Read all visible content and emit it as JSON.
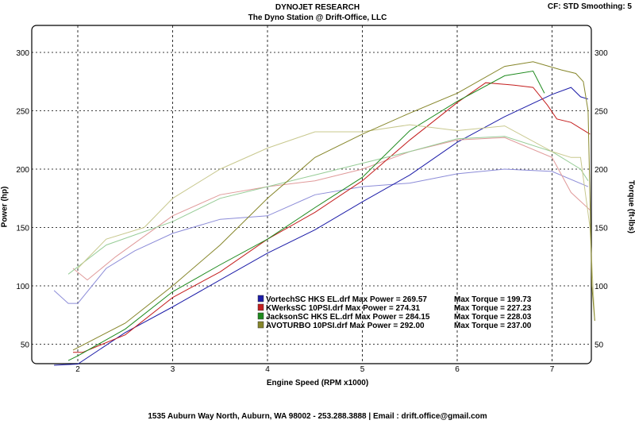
{
  "header": {
    "title": "DYNOJET RESEARCH",
    "subtitle": "The Dyno Station @ Drift-Office, LLC",
    "settings": "CF: STD  Smoothing: 5"
  },
  "footer": "1535 Auburn Way North, Auburn, WA 98002 - 253.288.3888 | Email : drift.office@gmail.com",
  "chart_data": {
    "type": "line",
    "title": "DYNOJET RESEARCH",
    "xlabel": "Engine Speed (RPM x1000)",
    "ylabel": "Power (hp)",
    "y2label": "Torque (ft-lbs)",
    "xlim": [
      1.6,
      7.55
    ],
    "ylim": [
      0,
      325
    ],
    "xticks": [
      "2",
      "3",
      "4",
      "5",
      "6",
      "7"
    ],
    "yticks": [
      "50",
      "100",
      "150",
      "200",
      "250",
      "300"
    ],
    "grid": true,
    "legend_placement": "center",
    "series": [
      {
        "name": "VortechSC HKS EL.drf",
        "max_power_label": "Max Power = 269.57",
        "max_torque_label": "Max Torque = 199.73",
        "color": "#1c1ca8",
        "torque_color": "#8c8cd8",
        "power": [
          [
            1.75,
            32
          ],
          [
            2.0,
            33
          ],
          [
            2.5,
            60
          ],
          [
            3.0,
            82
          ],
          [
            3.5,
            105
          ],
          [
            4.0,
            128
          ],
          [
            4.5,
            148
          ],
          [
            5.0,
            172
          ],
          [
            5.5,
            195
          ],
          [
            6.0,
            223
          ],
          [
            6.5,
            245
          ],
          [
            7.0,
            264
          ],
          [
            7.2,
            270
          ],
          [
            7.3,
            262
          ],
          [
            7.38,
            260
          ]
        ],
        "torque": [
          [
            1.75,
            96
          ],
          [
            1.9,
            85
          ],
          [
            2.0,
            85
          ],
          [
            2.3,
            115
          ],
          [
            2.6,
            130
          ],
          [
            3.0,
            145
          ],
          [
            3.5,
            157
          ],
          [
            4.0,
            160
          ],
          [
            4.5,
            178
          ],
          [
            5.0,
            185
          ],
          [
            5.5,
            188
          ],
          [
            6.0,
            196
          ],
          [
            6.5,
            200
          ],
          [
            7.0,
            198
          ],
          [
            7.38,
            185
          ]
        ]
      },
      {
        "name": "KWerksSC 10PSI.drf",
        "max_power_label": "Max Power = 274.31",
        "max_torque_label": "Max Torque = 227.23",
        "color": "#c41e1e",
        "torque_color": "#e09a9a",
        "power": [
          [
            1.95,
            43
          ],
          [
            2.05,
            43
          ],
          [
            2.5,
            58
          ],
          [
            3.0,
            90
          ],
          [
            3.5,
            112
          ],
          [
            4.0,
            140
          ],
          [
            4.5,
            163
          ],
          [
            5.0,
            190
          ],
          [
            5.5,
            225
          ],
          [
            6.0,
            257
          ],
          [
            6.3,
            274
          ],
          [
            6.6,
            272
          ],
          [
            6.8,
            270
          ],
          [
            6.95,
            255
          ],
          [
            7.05,
            243
          ],
          [
            7.2,
            240
          ],
          [
            7.4,
            230
          ]
        ],
        "torque": [
          [
            1.95,
            115
          ],
          [
            2.1,
            105
          ],
          [
            2.4,
            125
          ],
          [
            3.0,
            160
          ],
          [
            3.5,
            178
          ],
          [
            4.0,
            185
          ],
          [
            4.5,
            190
          ],
          [
            5.0,
            200
          ],
          [
            5.5,
            215
          ],
          [
            6.0,
            225
          ],
          [
            6.5,
            227
          ],
          [
            7.0,
            210
          ],
          [
            7.2,
            180
          ],
          [
            7.4,
            165
          ]
        ]
      },
      {
        "name": "JacksonSC HKS EL.drf",
        "max_power_label": "Max Power = 284.15",
        "max_torque_label": "Max Torque = 228.03",
        "color": "#1e8a1e",
        "torque_color": "#96cc96",
        "power": [
          [
            1.9,
            36
          ],
          [
            2.0,
            40
          ],
          [
            2.5,
            63
          ],
          [
            3.0,
            95
          ],
          [
            3.5,
            118
          ],
          [
            4.0,
            140
          ],
          [
            4.5,
            167
          ],
          [
            5.0,
            193
          ],
          [
            5.5,
            233
          ],
          [
            6.0,
            258
          ],
          [
            6.5,
            280
          ],
          [
            6.8,
            284
          ],
          [
            6.92,
            265
          ]
        ],
        "torque": [
          [
            1.9,
            110
          ],
          [
            2.3,
            135
          ],
          [
            3.0,
            155
          ],
          [
            3.5,
            175
          ],
          [
            4.0,
            185
          ],
          [
            4.5,
            195
          ],
          [
            5.0,
            205
          ],
          [
            5.5,
            215
          ],
          [
            6.0,
            226
          ],
          [
            6.5,
            228
          ],
          [
            7.0,
            215
          ],
          [
            7.3,
            200
          ],
          [
            7.38,
            190
          ]
        ]
      },
      {
        "name": "AVOTURBO 10PSI.drf",
        "max_power_label": "Max Power = 292.00",
        "max_torque_label": "Max Torque = 237.00",
        "color": "#86862a",
        "torque_color": "#c8c88e",
        "power": [
          [
            1.95,
            45
          ],
          [
            2.5,
            68
          ],
          [
            3.0,
            100
          ],
          [
            3.5,
            135
          ],
          [
            4.0,
            175
          ],
          [
            4.5,
            210
          ],
          [
            5.0,
            230
          ],
          [
            5.5,
            248
          ],
          [
            6.0,
            265
          ],
          [
            6.5,
            288
          ],
          [
            6.8,
            292
          ],
          [
            7.1,
            285
          ],
          [
            7.25,
            282
          ],
          [
            7.33,
            275
          ],
          [
            7.38,
            250
          ],
          [
            7.42,
            100
          ],
          [
            7.45,
            70
          ]
        ],
        "torque": [
          [
            2.0,
            115
          ],
          [
            2.3,
            140
          ],
          [
            2.7,
            150
          ],
          [
            3.0,
            175
          ],
          [
            3.5,
            200
          ],
          [
            4.0,
            218
          ],
          [
            4.5,
            232
          ],
          [
            5.0,
            232
          ],
          [
            5.5,
            238
          ],
          [
            6.0,
            233
          ],
          [
            6.5,
            237
          ],
          [
            7.0,
            215
          ],
          [
            7.2,
            210
          ],
          [
            7.3,
            210
          ],
          [
            7.4,
            150
          ],
          [
            7.45,
            70
          ]
        ]
      }
    ]
  }
}
